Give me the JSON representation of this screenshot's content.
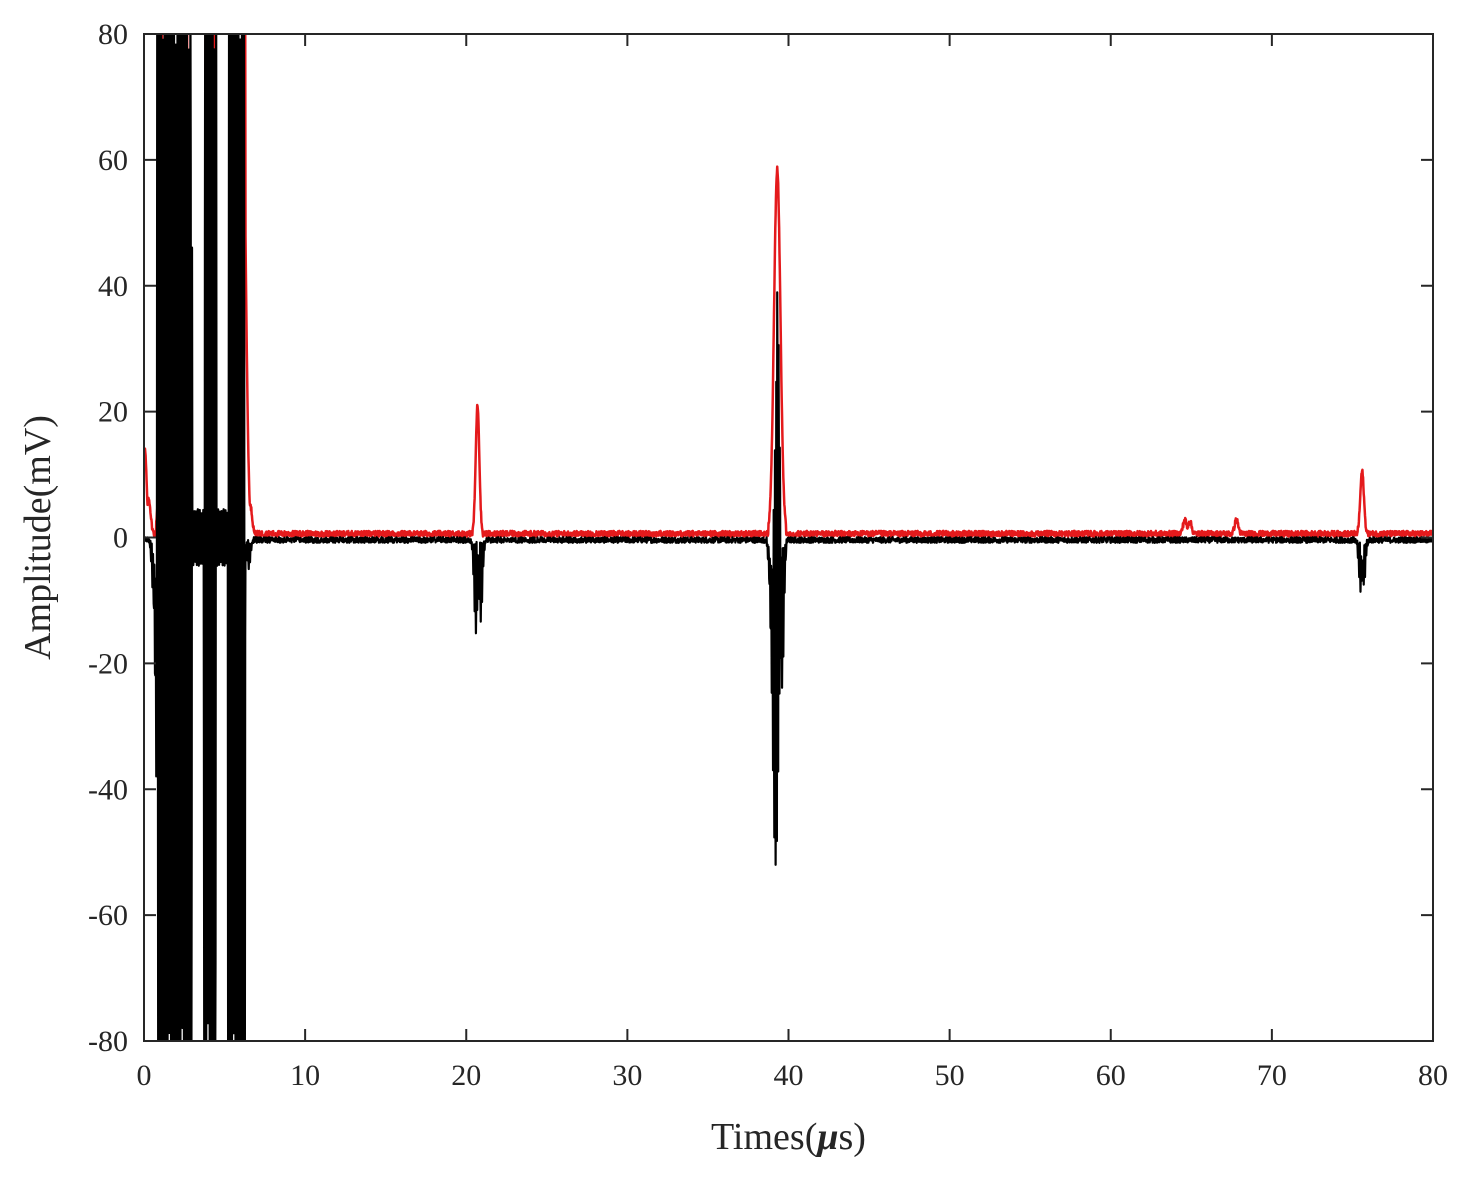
{
  "chart_data": {
    "type": "line",
    "xlabel_prefix": "Times(",
    "xlabel_symbol": "μ",
    "xlabel_suffix": "s)",
    "ylabel": "Amplitude(mV)",
    "xlim": [
      0,
      80
    ],
    "ylim": [
      -80,
      80
    ],
    "xticks": [
      0,
      10,
      20,
      30,
      40,
      50,
      60,
      70,
      80
    ],
    "yticks": [
      -80,
      -60,
      -40,
      -20,
      0,
      20,
      40,
      60,
      80
    ],
    "xtick_labels": [
      "0",
      "10",
      "20",
      "30",
      "40",
      "50",
      "60",
      "70",
      "80"
    ],
    "ytick_labels": [
      "-80",
      "-60",
      "-40",
      "-20",
      "0",
      "20",
      "40",
      "60",
      "80"
    ],
    "grid": false,
    "colors": {
      "red_series": "#e41a1c",
      "black_series": "#000000",
      "axes": "#262626"
    },
    "series": [
      {
        "color": "#e41a1c",
        "baseline": 0.6,
        "peaks": [
          {
            "x": 0.05,
            "y": 14
          },
          {
            "x": 0.3,
            "y": 6
          },
          {
            "x": 1.3,
            "y": 80
          },
          {
            "x": 2.0,
            "y": 80
          },
          {
            "x": 4.0,
            "y": 80
          },
          {
            "x": 5.6,
            "y": 80
          },
          {
            "x": 6.1,
            "y": 80
          },
          {
            "x": 6.6,
            "y": 5
          },
          {
            "x": 20.7,
            "y": 21
          },
          {
            "x": 39.3,
            "y": 58.5
          },
          {
            "x": 64.6,
            "y": 2.8
          },
          {
            "x": 64.9,
            "y": 2.6
          },
          {
            "x": 67.8,
            "y": 2.8
          },
          {
            "x": 75.6,
            "y": 10.5
          }
        ]
      },
      {
        "color": "#000000",
        "baseline": -0.4,
        "peaks": [
          {
            "x": 0.6,
            "y": -10
          },
          {
            "x": 1.0,
            "y": -80
          },
          {
            "x": 2.0,
            "y": -80
          },
          {
            "x": 2.6,
            "y": -70
          },
          {
            "x": 3.8,
            "y": -80
          },
          {
            "x": 4.3,
            "y": -61
          },
          {
            "x": 5.8,
            "y": -80
          },
          {
            "x": 6.5,
            "y": -5
          },
          {
            "x": 20.6,
            "y": -15
          },
          {
            "x": 20.9,
            "y": -13
          },
          {
            "x": 39.2,
            "y": -52
          },
          {
            "x": 39.3,
            "y": 39
          },
          {
            "x": 39.6,
            "y": -24
          },
          {
            "x": 75.5,
            "y": -8.5
          },
          {
            "x": 75.7,
            "y": -7.5
          }
        ]
      }
    ]
  }
}
